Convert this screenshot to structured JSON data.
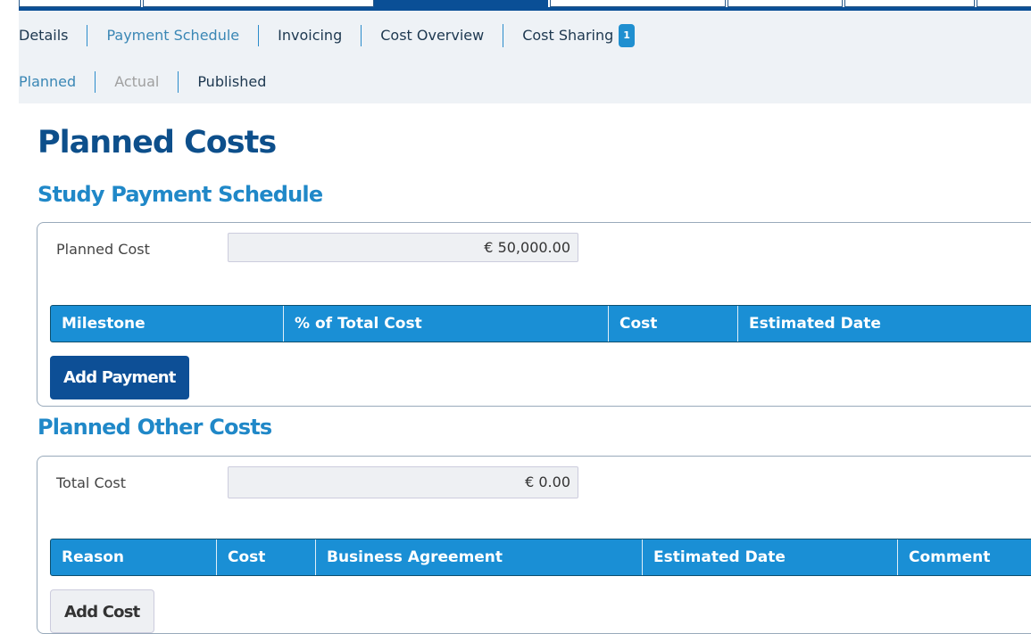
{
  "nav": {
    "items": [
      {
        "label": "Details"
      },
      {
        "label": "Payment Schedule"
      },
      {
        "label": "Invoicing"
      },
      {
        "label": "Cost Overview"
      },
      {
        "label": "Cost Sharing",
        "badge": "1"
      }
    ]
  },
  "subnav": {
    "items": [
      {
        "label": "Planned"
      },
      {
        "label": "Actual"
      },
      {
        "label": "Published"
      }
    ]
  },
  "page_title": "Planned Costs",
  "schedule": {
    "title": "Study Payment Schedule",
    "field_label": "Planned Cost",
    "field_value": "€ 50,000.00",
    "columns": [
      "Milestone",
      "% of Total Cost",
      "Cost",
      "Estimated Date"
    ],
    "button": "Add Payment"
  },
  "other": {
    "title": "Planned Other Costs",
    "field_label": "Total Cost",
    "field_value": "€ 0.00",
    "columns": [
      "Reason",
      "Cost",
      "Business Agreement",
      "Estimated Date",
      "Comment"
    ],
    "button": "Add Cost"
  },
  "colors": {
    "primary": "#0a4f96",
    "header": "#1a8fd5",
    "accent": "#2088c8"
  }
}
